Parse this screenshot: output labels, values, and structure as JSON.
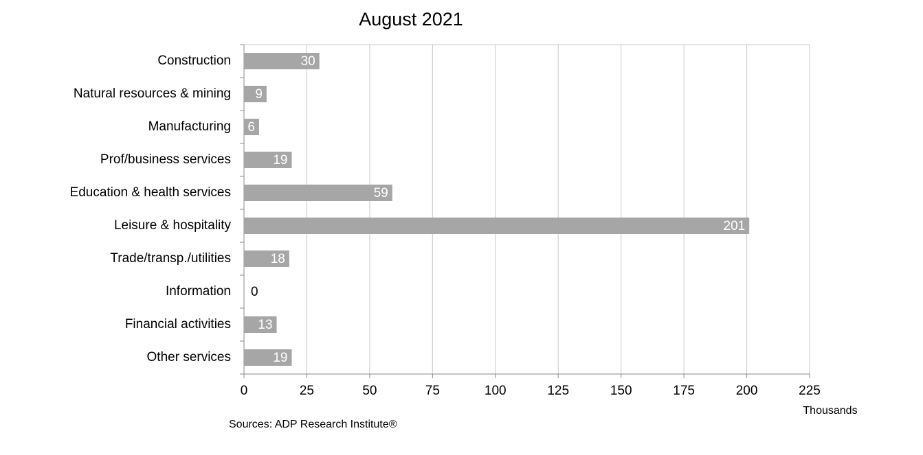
{
  "chart_data": {
    "type": "bar",
    "orientation": "horizontal",
    "title": "August 2021",
    "categories": [
      "Construction",
      "Natural resources & mining",
      "Manufacturing",
      "Prof/business services",
      "Education & health services",
      "Leisure & hospitality",
      "Trade/transp./utilities",
      "Information",
      "Financial activities",
      "Other services"
    ],
    "values": [
      30,
      9,
      6,
      19,
      59,
      201,
      18,
      0,
      13,
      19
    ],
    "color": "#a6a6a6",
    "xlim": [
      0,
      225
    ],
    "xticks": [
      0,
      25,
      50,
      75,
      100,
      125,
      150,
      175,
      200,
      225
    ],
    "xlabel": "Thousands",
    "grid": true,
    "source": "Sources: ADP Research Institute®"
  }
}
